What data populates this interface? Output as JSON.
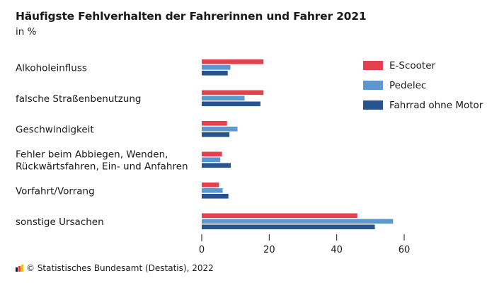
{
  "title": "Häufigste Fehlverhalten der Fahrerinnen und Fahrer 2021",
  "subtitle": "in %",
  "footer": "© Statistisches Bundesamt (Destatis), 2022",
  "chart_data": {
    "type": "bar",
    "orientation": "horizontal",
    "categories": [
      [
        "Alkoholeinfluss"
      ],
      [
        "falsche Straßenbenutzung"
      ],
      [
        "Geschwindigkeit"
      ],
      [
        "Fehler beim Abbiegen, Wenden,",
        "Rückwärtsfahren, Ein- und Anfahren"
      ],
      [
        "Vorfahrt/Vorrang"
      ],
      [
        "sonstige Ursachen"
      ]
    ],
    "series": [
      {
        "name": "E-Scooter",
        "color": "#e5404e",
        "values": [
          18.3,
          18.3,
          7.5,
          6.0,
          5.1,
          46.1
        ]
      },
      {
        "name": "Pedelec",
        "color": "#5b97d0",
        "values": [
          8.5,
          12.7,
          10.6,
          5.5,
          6.2,
          56.7
        ]
      },
      {
        "name": "Fahrrad ohne Motor",
        "color": "#25548f",
        "values": [
          7.7,
          17.4,
          8.2,
          8.6,
          7.9,
          51.3
        ]
      }
    ],
    "xlim": [
      0,
      60
    ],
    "xticks": [
      0,
      20,
      40,
      60
    ],
    "xlabel": "",
    "ylabel": "",
    "grid": false,
    "legend": "top-right"
  }
}
